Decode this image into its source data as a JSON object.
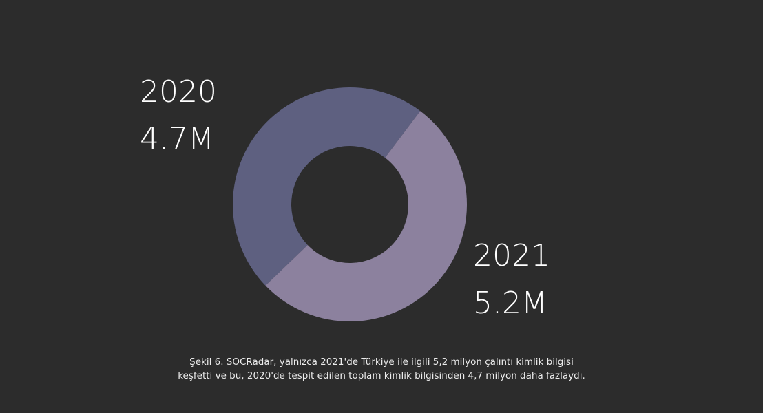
{
  "chart_data": {
    "type": "pie",
    "style": "donut",
    "slices": [
      {
        "label": "2020",
        "value_label": "4.7M",
        "value": 4.7,
        "color": "#5e6080"
      },
      {
        "label": "2021",
        "value_label": "5.2M",
        "value": 5.2,
        "color": "#8c819e"
      }
    ]
  },
  "colors": {
    "background": "#2c2c2c",
    "text": "#ffffff"
  },
  "caption": {
    "line1": "Şekil 6. SOCRadar, yalnızca 2021'de Türkiye ile ilgili 5,2 milyon çalıntı kimlik bilgisi",
    "line2": "keşfetti ve bu, 2020'de tespit edilen toplam kimlik bilgisinden 4,7 milyon daha fazlaydı."
  }
}
